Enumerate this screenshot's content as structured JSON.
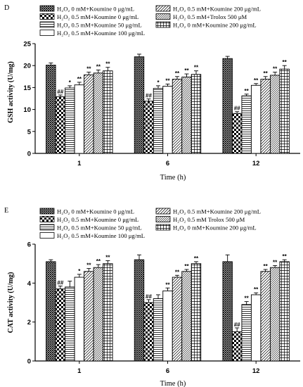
{
  "colors": {
    "ink": "#000000",
    "background": "#ffffff"
  },
  "chart_data": [
    {
      "panel": "D",
      "type": "bar",
      "ylabel": "GSH activity (U/mg)",
      "xlabel": "Time (h)",
      "ylim": [
        0,
        25
      ],
      "yticks": [
        0,
        5,
        10,
        15,
        20,
        25
      ],
      "categories": [
        "1",
        "6",
        "12"
      ],
      "series": [
        {
          "name": "H₂O₂ 0 mM+Koumine 0 μg/mL",
          "pattern": "dense-crosshatch",
          "values": [
            20.1,
            22.0,
            21.6
          ],
          "errors": [
            0.5,
            0.6,
            0.5
          ],
          "sig": [
            "",
            "",
            ""
          ]
        },
        {
          "name": "H₂O₂ 0.5 mM+Koumine 0 μg/mL",
          "pattern": "checker",
          "values": [
            12.9,
            11.9,
            9.1
          ],
          "errors": [
            0.4,
            0.5,
            0.4
          ],
          "sig": [
            "##",
            "##",
            "##"
          ]
        },
        {
          "name": "H₂O₂ 0.5 mM+Koumine 50 μg/mL",
          "pattern": "horizontal",
          "values": [
            14.9,
            14.8,
            13.1
          ],
          "errors": [
            0.5,
            0.6,
            0.4
          ],
          "sig": [
            "*",
            "*",
            "**"
          ]
        },
        {
          "name": "H₂O₂ 0.5 mM+Koumine 100 μg/mL",
          "pattern": "white",
          "values": [
            15.6,
            15.3,
            15.5
          ],
          "errors": [
            0.6,
            0.5,
            0.4
          ],
          "sig": [
            "**",
            "**",
            "**"
          ]
        },
        {
          "name": "H₂O₂ 0.5 mM+Koumine 200 μg/mL",
          "pattern": "diagonal",
          "values": [
            17.9,
            16.9,
            16.9
          ],
          "errors": [
            0.6,
            0.6,
            0.6
          ],
          "sig": [
            "**",
            "**",
            "**"
          ]
        },
        {
          "name": "H₂O₂ 0.5 mM+Trolox 500 μM",
          "pattern": "diagonal-dense",
          "values": [
            18.3,
            17.4,
            17.8
          ],
          "errors": [
            0.7,
            0.7,
            0.7
          ],
          "sig": [
            "**",
            "**",
            "**"
          ]
        },
        {
          "name": "H₂O₂ 0 mM+Koumine 200 μg/mL",
          "pattern": "grid",
          "values": [
            18.8,
            18.0,
            19.2
          ],
          "errors": [
            0.8,
            0.8,
            0.8
          ],
          "sig": [
            "**",
            "**",
            "**"
          ]
        }
      ]
    },
    {
      "panel": "E",
      "type": "bar",
      "ylabel": "CAT activity (U/mg)",
      "xlabel": "Time (h)",
      "ylim": [
        0,
        6
      ],
      "yticks": [
        0,
        2,
        4,
        6
      ],
      "categories": [
        "1",
        "6",
        "12"
      ],
      "series": [
        {
          "name": "H₂O₂ 0 mM+Koumine 0 μg/mL",
          "pattern": "dense-crosshatch",
          "values": [
            5.1,
            5.2,
            5.1
          ],
          "errors": [
            0.1,
            0.25,
            0.35
          ],
          "sig": [
            "",
            "",
            ""
          ]
        },
        {
          "name": "H₂O₂ 0.5 mM+Koumine 0 μg/mL",
          "pattern": "checker",
          "values": [
            3.7,
            3.0,
            1.5
          ],
          "errors": [
            0.15,
            0.15,
            0.2
          ],
          "sig": [
            "##",
            "##",
            "##"
          ]
        },
        {
          "name": "H₂O₂ 0.5 mM+Koumine 50 μg/mL",
          "pattern": "horizontal",
          "values": [
            3.8,
            3.2,
            2.9
          ],
          "errors": [
            0.3,
            0.2,
            0.15
          ],
          "sig": [
            "",
            "",
            "**"
          ]
        },
        {
          "name": "H₂O₂ 0.5 mM+Koumine 100 μg/mL",
          "pattern": "white",
          "values": [
            4.3,
            3.6,
            3.4
          ],
          "errors": [
            0.15,
            0.15,
            0.1
          ],
          "sig": [
            "*",
            "**",
            "**"
          ]
        },
        {
          "name": "H₂O₂ 0.5 mM+Koumine 200 μg/mL",
          "pattern": "diagonal",
          "values": [
            4.6,
            4.3,
            4.6
          ],
          "errors": [
            0.15,
            0.1,
            0.1
          ],
          "sig": [
            "**",
            "**",
            "**"
          ]
        },
        {
          "name": "H₂O₂ 0.5 mM Trolox 500 μM",
          "pattern": "diagonal-dense",
          "values": [
            4.8,
            4.6,
            4.8
          ],
          "errors": [
            0.15,
            0.1,
            0.1
          ],
          "sig": [
            "**",
            "**",
            "**"
          ]
        },
        {
          "name": "H₂O₂ 0 mM+Koumine 200 μg/mL",
          "pattern": "grid",
          "values": [
            5.0,
            5.0,
            5.1
          ],
          "errors": [
            0.15,
            0.1,
            0.1
          ],
          "sig": [
            "**",
            "**",
            "**"
          ]
        }
      ]
    }
  ]
}
